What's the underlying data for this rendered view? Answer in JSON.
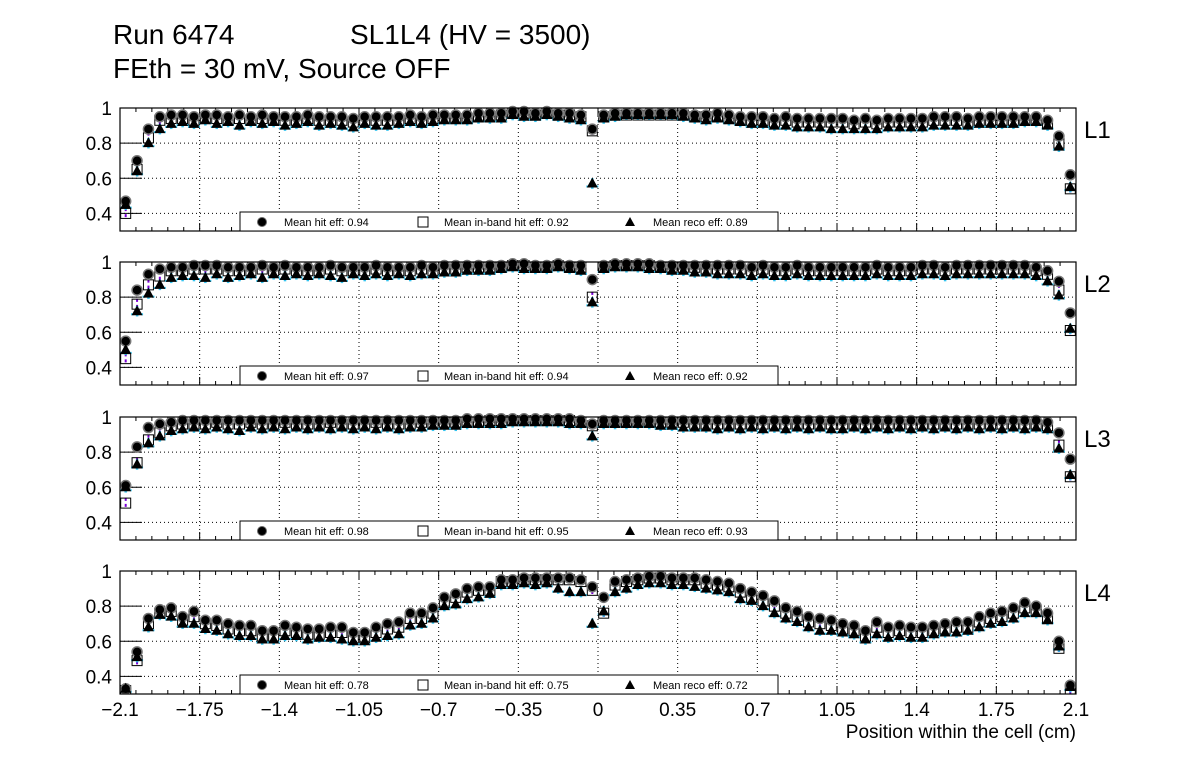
{
  "title": {
    "run": "Run 6474",
    "chamber": "SL1L4 (HV = 3500)",
    "conditions": "FEth = 30 mV, Source OFF"
  },
  "colors": {
    "hit_err": "#e00000",
    "inband_err": "#7a00d6",
    "reco_err": "#33c4f0",
    "marker": "#000000"
  },
  "chart_data": {
    "type": "scatter",
    "xlabel": "Position within the cell (cm)",
    "xlim": [
      -2.1,
      2.1
    ],
    "ylim": [
      0.3,
      1.0
    ],
    "x_ticks": [
      "−2.1",
      "−1.75",
      "−1.4",
      "−1.05",
      "−0.7",
      "−0.35",
      "0",
      "0.35",
      "0.7",
      "1.05",
      "1.4",
      "1.75",
      "2.1"
    ],
    "x_tick_values": [
      -2.1,
      -1.75,
      -1.4,
      -1.05,
      -0.7,
      -0.35,
      0,
      0.35,
      0.7,
      1.05,
      1.4,
      1.75,
      2.1
    ],
    "y_ticks": [
      "0.4",
      "0.6",
      "0.8",
      "1"
    ],
    "y_tick_values": [
      0.4,
      0.6,
      0.8,
      1.0
    ],
    "grid": true,
    "bin_width": 0.05,
    "legend_labels": {
      "hit": "Mean hit  eff: ",
      "inband": "Mean in-band hit eff: ",
      "reco": "Mean reco eff: "
    },
    "panels": [
      {
        "name": "L1",
        "mean_hit": "0.94",
        "mean_inband": "0.92",
        "mean_reco": "0.89",
        "hit": [
          0.47,
          0.7,
          0.88,
          0.95,
          0.96,
          0.96,
          0.95,
          0.96,
          0.96,
          0.95,
          0.96,
          0.95,
          0.96,
          0.95,
          0.95,
          0.95,
          0.96,
          0.95,
          0.95,
          0.95,
          0.94,
          0.95,
          0.95,
          0.95,
          0.95,
          0.96,
          0.95,
          0.96,
          0.96,
          0.96,
          0.96,
          0.97,
          0.97,
          0.97,
          0.98,
          0.98,
          0.97,
          0.98,
          0.97,
          0.97,
          0.96,
          0.88,
          0.96,
          0.97,
          0.97,
          0.97,
          0.97,
          0.97,
          0.97,
          0.97,
          0.96,
          0.96,
          0.97,
          0.96,
          0.95,
          0.95,
          0.95,
          0.94,
          0.95,
          0.94,
          0.94,
          0.94,
          0.94,
          0.94,
          0.93,
          0.94,
          0.93,
          0.94,
          0.94,
          0.94,
          0.94,
          0.95,
          0.95,
          0.95,
          0.94,
          0.95,
          0.95,
          0.95,
          0.95,
          0.95,
          0.95,
          0.93,
          0.84,
          0.62
        ],
        "inband": [
          0.4,
          0.65,
          0.83,
          0.93,
          0.94,
          0.94,
          0.93,
          0.94,
          0.94,
          0.93,
          0.94,
          0.93,
          0.94,
          0.93,
          0.93,
          0.93,
          0.94,
          0.93,
          0.93,
          0.93,
          0.92,
          0.93,
          0.93,
          0.93,
          0.93,
          0.94,
          0.93,
          0.94,
          0.94,
          0.94,
          0.94,
          0.95,
          0.95,
          0.96,
          0.97,
          0.97,
          0.96,
          0.97,
          0.96,
          0.96,
          0.95,
          0.87,
          0.95,
          0.96,
          0.96,
          0.96,
          0.96,
          0.96,
          0.96,
          0.96,
          0.95,
          0.95,
          0.95,
          0.94,
          0.93,
          0.93,
          0.93,
          0.92,
          0.93,
          0.92,
          0.92,
          0.92,
          0.92,
          0.92,
          0.91,
          0.92,
          0.91,
          0.92,
          0.92,
          0.92,
          0.92,
          0.93,
          0.93,
          0.93,
          0.92,
          0.93,
          0.93,
          0.93,
          0.93,
          0.93,
          0.93,
          0.91,
          0.8,
          0.54
        ],
        "reco": [
          0.45,
          0.64,
          0.8,
          0.88,
          0.91,
          0.92,
          0.91,
          0.93,
          0.91,
          0.92,
          0.9,
          0.92,
          0.91,
          0.92,
          0.9,
          0.91,
          0.92,
          0.9,
          0.91,
          0.9,
          0.89,
          0.91,
          0.9,
          0.9,
          0.91,
          0.92,
          0.91,
          0.92,
          0.93,
          0.93,
          0.93,
          0.94,
          0.94,
          0.94,
          0.96,
          0.95,
          0.95,
          0.96,
          0.95,
          0.94,
          0.93,
          0.57,
          0.94,
          0.95,
          0.96,
          0.96,
          0.96,
          0.96,
          0.96,
          0.95,
          0.94,
          0.93,
          0.94,
          0.93,
          0.92,
          0.91,
          0.91,
          0.9,
          0.9,
          0.89,
          0.89,
          0.89,
          0.88,
          0.88,
          0.88,
          0.88,
          0.88,
          0.89,
          0.89,
          0.89,
          0.89,
          0.9,
          0.9,
          0.9,
          0.9,
          0.91,
          0.91,
          0.91,
          0.91,
          0.92,
          0.92,
          0.9,
          0.78,
          0.55
        ]
      },
      {
        "name": "L2",
        "mean_hit": "0.97",
        "mean_inband": "0.94",
        "mean_reco": "0.92",
        "hit": [
          0.55,
          0.84,
          0.93,
          0.96,
          0.97,
          0.97,
          0.98,
          0.98,
          0.98,
          0.97,
          0.97,
          0.97,
          0.98,
          0.97,
          0.98,
          0.97,
          0.97,
          0.97,
          0.98,
          0.97,
          0.97,
          0.97,
          0.98,
          0.97,
          0.97,
          0.97,
          0.98,
          0.97,
          0.98,
          0.98,
          0.98,
          0.98,
          0.98,
          0.98,
          0.99,
          0.99,
          0.98,
          0.98,
          0.99,
          0.98,
          0.98,
          0.9,
          0.98,
          0.99,
          0.99,
          0.99,
          0.99,
          0.98,
          0.98,
          0.98,
          0.98,
          0.98,
          0.98,
          0.98,
          0.98,
          0.97,
          0.98,
          0.97,
          0.97,
          0.98,
          0.97,
          0.97,
          0.97,
          0.97,
          0.97,
          0.97,
          0.98,
          0.97,
          0.97,
          0.97,
          0.98,
          0.98,
          0.97,
          0.98,
          0.98,
          0.98,
          0.98,
          0.98,
          0.98,
          0.98,
          0.97,
          0.95,
          0.89,
          0.71
        ],
        "inband": [
          0.45,
          0.76,
          0.87,
          0.92,
          0.95,
          0.95,
          0.96,
          0.96,
          0.96,
          0.95,
          0.95,
          0.95,
          0.96,
          0.95,
          0.96,
          0.95,
          0.95,
          0.95,
          0.96,
          0.95,
          0.95,
          0.95,
          0.96,
          0.95,
          0.95,
          0.95,
          0.96,
          0.95,
          0.96,
          0.96,
          0.97,
          0.97,
          0.97,
          0.97,
          0.98,
          0.98,
          0.97,
          0.97,
          0.98,
          0.97,
          0.97,
          0.8,
          0.97,
          0.98,
          0.98,
          0.98,
          0.98,
          0.97,
          0.97,
          0.97,
          0.97,
          0.96,
          0.96,
          0.96,
          0.96,
          0.95,
          0.96,
          0.95,
          0.95,
          0.96,
          0.95,
          0.95,
          0.95,
          0.95,
          0.95,
          0.95,
          0.96,
          0.95,
          0.95,
          0.95,
          0.96,
          0.96,
          0.95,
          0.96,
          0.96,
          0.96,
          0.96,
          0.96,
          0.96,
          0.96,
          0.95,
          0.93,
          0.84,
          0.61
        ],
        "reco": [
          0.5,
          0.72,
          0.82,
          0.87,
          0.91,
          0.92,
          0.92,
          0.91,
          0.93,
          0.91,
          0.92,
          0.93,
          0.91,
          0.93,
          0.92,
          0.93,
          0.92,
          0.93,
          0.92,
          0.91,
          0.93,
          0.92,
          0.93,
          0.92,
          0.93,
          0.92,
          0.93,
          0.93,
          0.94,
          0.94,
          0.95,
          0.95,
          0.95,
          0.96,
          0.97,
          0.96,
          0.96,
          0.96,
          0.97,
          0.96,
          0.95,
          0.77,
          0.96,
          0.97,
          0.97,
          0.97,
          0.96,
          0.96,
          0.95,
          0.95,
          0.94,
          0.94,
          0.93,
          0.93,
          0.93,
          0.92,
          0.93,
          0.92,
          0.92,
          0.93,
          0.92,
          0.92,
          0.92,
          0.92,
          0.92,
          0.92,
          0.93,
          0.92,
          0.92,
          0.92,
          0.93,
          0.93,
          0.92,
          0.93,
          0.93,
          0.93,
          0.93,
          0.93,
          0.93,
          0.93,
          0.92,
          0.89,
          0.81,
          0.62
        ]
      },
      {
        "name": "L3",
        "mean_hit": "0.98",
        "mean_inband": "0.95",
        "mean_reco": "0.93",
        "hit": [
          0.61,
          0.83,
          0.94,
          0.96,
          0.97,
          0.98,
          0.98,
          0.98,
          0.98,
          0.98,
          0.98,
          0.98,
          0.98,
          0.98,
          0.98,
          0.98,
          0.98,
          0.98,
          0.98,
          0.98,
          0.98,
          0.98,
          0.98,
          0.98,
          0.98,
          0.98,
          0.98,
          0.98,
          0.98,
          0.98,
          0.99,
          0.99,
          0.99,
          0.99,
          0.99,
          0.99,
          0.99,
          0.99,
          0.99,
          0.99,
          0.98,
          0.96,
          0.98,
          0.98,
          0.98,
          0.98,
          0.98,
          0.98,
          0.98,
          0.98,
          0.98,
          0.98,
          0.98,
          0.98,
          0.98,
          0.98,
          0.98,
          0.98,
          0.98,
          0.98,
          0.98,
          0.98,
          0.98,
          0.98,
          0.98,
          0.98,
          0.98,
          0.98,
          0.98,
          0.98,
          0.98,
          0.98,
          0.98,
          0.98,
          0.98,
          0.98,
          0.98,
          0.98,
          0.98,
          0.98,
          0.98,
          0.97,
          0.91,
          0.76
        ],
        "inband": [
          0.51,
          0.74,
          0.87,
          0.91,
          0.95,
          0.96,
          0.96,
          0.96,
          0.97,
          0.96,
          0.96,
          0.97,
          0.96,
          0.96,
          0.97,
          0.96,
          0.96,
          0.96,
          0.97,
          0.96,
          0.96,
          0.96,
          0.97,
          0.96,
          0.96,
          0.96,
          0.97,
          0.96,
          0.97,
          0.97,
          0.97,
          0.97,
          0.98,
          0.98,
          0.98,
          0.98,
          0.98,
          0.98,
          0.98,
          0.98,
          0.97,
          0.95,
          0.97,
          0.97,
          0.97,
          0.97,
          0.97,
          0.97,
          0.97,
          0.97,
          0.96,
          0.96,
          0.96,
          0.96,
          0.96,
          0.96,
          0.96,
          0.96,
          0.96,
          0.96,
          0.96,
          0.96,
          0.96,
          0.96,
          0.96,
          0.96,
          0.96,
          0.96,
          0.96,
          0.96,
          0.96,
          0.96,
          0.96,
          0.96,
          0.96,
          0.96,
          0.96,
          0.96,
          0.96,
          0.96,
          0.96,
          0.95,
          0.84,
          0.66
        ],
        "reco": [
          0.6,
          0.73,
          0.85,
          0.89,
          0.92,
          0.93,
          0.94,
          0.93,
          0.94,
          0.93,
          0.92,
          0.94,
          0.93,
          0.94,
          0.93,
          0.94,
          0.93,
          0.94,
          0.93,
          0.94,
          0.93,
          0.94,
          0.93,
          0.94,
          0.93,
          0.94,
          0.94,
          0.95,
          0.95,
          0.95,
          0.96,
          0.96,
          0.96,
          0.96,
          0.97,
          0.97,
          0.97,
          0.97,
          0.97,
          0.96,
          0.96,
          0.89,
          0.96,
          0.96,
          0.96,
          0.96,
          0.96,
          0.95,
          0.95,
          0.94,
          0.94,
          0.94,
          0.93,
          0.94,
          0.93,
          0.94,
          0.93,
          0.94,
          0.93,
          0.94,
          0.93,
          0.94,
          0.93,
          0.93,
          0.94,
          0.93,
          0.94,
          0.93,
          0.94,
          0.93,
          0.94,
          0.93,
          0.94,
          0.93,
          0.94,
          0.93,
          0.94,
          0.93,
          0.94,
          0.93,
          0.94,
          0.93,
          0.82,
          0.67
        ]
      },
      {
        "name": "L4",
        "mean_hit": "0.78",
        "mean_inband": "0.75",
        "mean_reco": "0.72",
        "hit": [
          0.33,
          0.54,
          0.73,
          0.78,
          0.79,
          0.74,
          0.77,
          0.72,
          0.72,
          0.7,
          0.69,
          0.69,
          0.66,
          0.66,
          0.69,
          0.68,
          0.67,
          0.67,
          0.68,
          0.68,
          0.65,
          0.65,
          0.68,
          0.7,
          0.71,
          0.76,
          0.76,
          0.79,
          0.85,
          0.87,
          0.9,
          0.91,
          0.91,
          0.95,
          0.95,
          0.96,
          0.96,
          0.96,
          0.96,
          0.96,
          0.95,
          0.91,
          0.85,
          0.94,
          0.95,
          0.96,
          0.97,
          0.97,
          0.96,
          0.96,
          0.96,
          0.95,
          0.94,
          0.93,
          0.9,
          0.88,
          0.86,
          0.83,
          0.79,
          0.77,
          0.74,
          0.73,
          0.72,
          0.7,
          0.69,
          0.66,
          0.71,
          0.68,
          0.69,
          0.68,
          0.68,
          0.69,
          0.7,
          0.71,
          0.71,
          0.74,
          0.76,
          0.77,
          0.79,
          0.82,
          0.8,
          0.76,
          0.6,
          0.35
        ],
        "inband": [
          0.32,
          0.49,
          0.7,
          0.76,
          0.77,
          0.72,
          0.74,
          0.7,
          0.69,
          0.67,
          0.66,
          0.66,
          0.63,
          0.63,
          0.66,
          0.65,
          0.64,
          0.64,
          0.65,
          0.65,
          0.62,
          0.62,
          0.65,
          0.67,
          0.68,
          0.73,
          0.73,
          0.76,
          0.82,
          0.85,
          0.88,
          0.89,
          0.89,
          0.94,
          0.94,
          0.95,
          0.95,
          0.95,
          0.95,
          0.95,
          0.94,
          0.89,
          0.76,
          0.92,
          0.94,
          0.95,
          0.96,
          0.96,
          0.95,
          0.95,
          0.95,
          0.93,
          0.92,
          0.91,
          0.88,
          0.85,
          0.83,
          0.8,
          0.76,
          0.74,
          0.71,
          0.7,
          0.69,
          0.67,
          0.66,
          0.63,
          0.68,
          0.65,
          0.66,
          0.65,
          0.65,
          0.66,
          0.67,
          0.68,
          0.68,
          0.71,
          0.73,
          0.74,
          0.76,
          0.79,
          0.77,
          0.73,
          0.56,
          0.32
        ],
        "reco": [
          0.33,
          0.51,
          0.68,
          0.75,
          0.74,
          0.7,
          0.7,
          0.67,
          0.66,
          0.64,
          0.63,
          0.63,
          0.61,
          0.61,
          0.63,
          0.63,
          0.61,
          0.62,
          0.62,
          0.61,
          0.6,
          0.6,
          0.62,
          0.63,
          0.64,
          0.69,
          0.7,
          0.73,
          0.8,
          0.81,
          0.84,
          0.85,
          0.87,
          0.92,
          0.92,
          0.93,
          0.92,
          0.93,
          0.9,
          0.88,
          0.88,
          0.7,
          0.77,
          0.88,
          0.9,
          0.92,
          0.93,
          0.93,
          0.92,
          0.92,
          0.91,
          0.9,
          0.89,
          0.88,
          0.84,
          0.83,
          0.8,
          0.76,
          0.73,
          0.71,
          0.68,
          0.66,
          0.66,
          0.65,
          0.64,
          0.61,
          0.64,
          0.62,
          0.63,
          0.62,
          0.62,
          0.64,
          0.65,
          0.65,
          0.66,
          0.68,
          0.7,
          0.71,
          0.73,
          0.76,
          0.76,
          0.72,
          0.57,
          0.34
        ]
      }
    ]
  }
}
